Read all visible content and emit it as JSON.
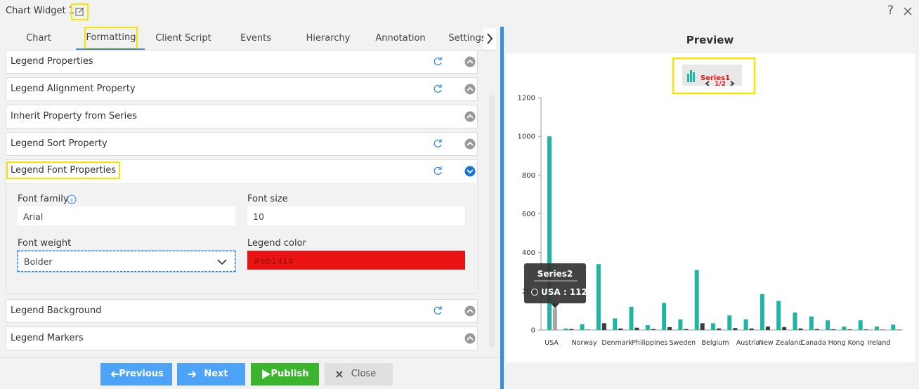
{
  "header": {
    "title": "Chart Widget 1",
    "help": "?"
  },
  "tabs": [
    "Chart",
    "Formatting",
    "Client Script",
    "Events",
    "Hierarchy",
    "Annotation",
    "Settings"
  ],
  "sections": [
    "Legend Properties",
    "Legend Alignment Property",
    "Inherit Property from Series",
    "Legend Sort Property",
    "Legend Font Properties",
    "Legend Background",
    "Legend Markers"
  ],
  "font_fields": [
    {
      "label": "Font family",
      "value": "Arial"
    },
    {
      "label": "Font size",
      "value": "10"
    },
    {
      "label": "Font weight",
      "value": "Bolder"
    },
    {
      "label": "Legend color",
      "value": "#eb1414"
    }
  ],
  "buttons": [
    "Previous",
    "Next",
    "Publish",
    "Close"
  ],
  "preview": {
    "title": "Preview",
    "chart": {
      "type": "bar",
      "categories": [
        "USA",
        null,
        "Norway",
        null,
        "Denmark",
        null,
        "Philippines",
        null,
        "Sweden",
        null,
        "Belgium",
        null,
        "Austria",
        null,
        "New Zealand",
        null,
        "Canada",
        null,
        "Hong Kong",
        null,
        "Ireland",
        null
      ],
      "series": [
        {
          "name": "Series1",
          "color": "#1fb5a3",
          "values": [
            1000,
            8,
            30,
            340,
            60,
            120,
            25,
            140,
            55,
            310,
            35,
            75,
            55,
            185,
            150,
            90,
            70,
            50,
            18,
            50,
            18,
            28
          ]
        },
        {
          "name": "Series2",
          "color": "#3c3c3c",
          "values": [
            112,
            5,
            2,
            35,
            8,
            12,
            5,
            15,
            5,
            35,
            8,
            10,
            8,
            18,
            15,
            8,
            5,
            4,
            3,
            3,
            2,
            2
          ]
        }
      ],
      "ylim": [
        0,
        1200
      ],
      "yticks": [
        0,
        200,
        400,
        600,
        800,
        1000,
        1200
      ],
      "legend_page": "1/2",
      "tooltip": {
        "title": "Series2",
        "text": "USA : 112"
      }
    }
  }
}
